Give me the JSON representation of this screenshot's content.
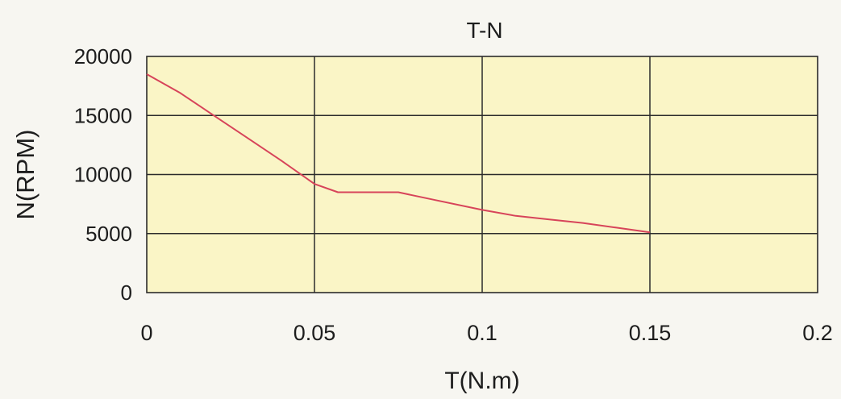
{
  "chart_data": {
    "type": "line",
    "title": "T-N",
    "xlabel": "T(N.m)",
    "ylabel": "N(RPM)",
    "xlim": [
      0,
      0.2
    ],
    "ylim": [
      0,
      20000
    ],
    "x_ticks": [
      0,
      0.05,
      0.1,
      0.15,
      0.2
    ],
    "x_tick_labels": [
      "0",
      "0.05",
      "0.1",
      "0.15",
      "0.2"
    ],
    "y_ticks": [
      0,
      5000,
      10000,
      15000,
      20000
    ],
    "y_tick_labels": [
      "0",
      "5000",
      "10000",
      "15000",
      "20000"
    ],
    "grid": true,
    "legend": "none",
    "series": [
      {
        "x": [
          0,
          0.01,
          0.02,
          0.03,
          0.04,
          0.05,
          0.057,
          0.065,
          0.075,
          0.085,
          0.1,
          0.11,
          0.12,
          0.13,
          0.14,
          0.15
        ],
        "y": [
          18500,
          16900,
          15000,
          13100,
          11200,
          9200,
          8500,
          8500,
          8500,
          7900,
          7000,
          6500,
          6200,
          5900,
          5500,
          5100
        ]
      }
    ],
    "colors": {
      "plot_background": "#faf5c6",
      "grid": "#2b2b2b",
      "line": "#d7445a",
      "page_background": "#f7f6f1"
    }
  }
}
